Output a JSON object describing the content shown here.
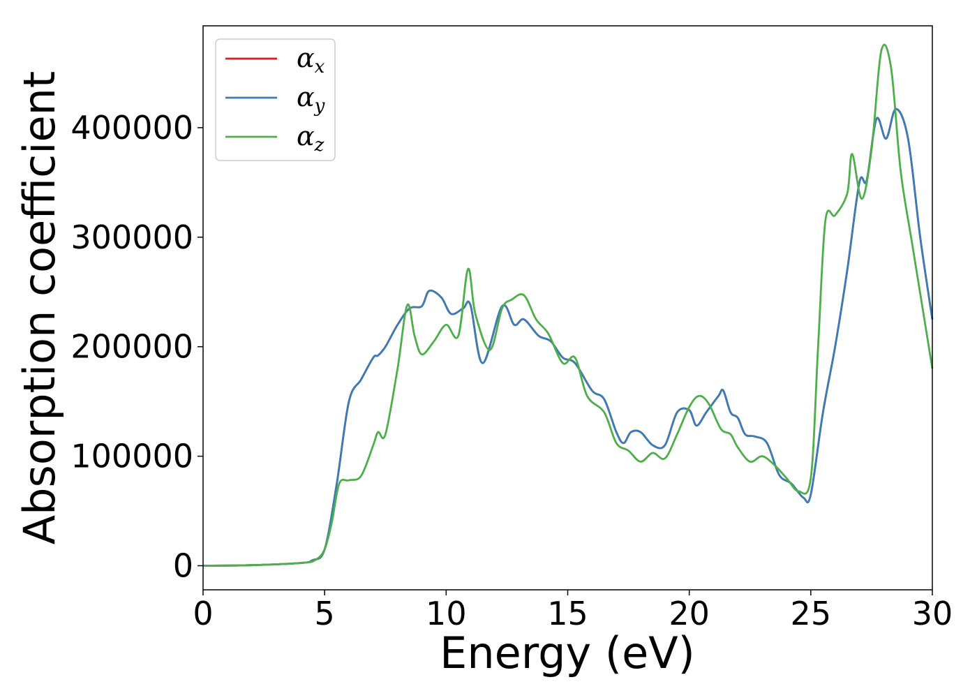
{
  "chart_data": {
    "type": "line",
    "title": "",
    "xlabel": "Energy (eV)",
    "ylabel": "Absorption coefficient",
    "xlim": [
      0,
      30
    ],
    "ylim": [
      -22000,
      493000
    ],
    "xticks": [
      0,
      5,
      10,
      15,
      20,
      25,
      30
    ],
    "xtick_labels": [
      "0",
      "5",
      "10",
      "15",
      "20",
      "25",
      "30"
    ],
    "yticks": [
      0,
      100000,
      200000,
      300000,
      400000
    ],
    "ytick_labels": [
      "0",
      "100000",
      "200000",
      "300000",
      "400000"
    ],
    "grid": false,
    "legend_position": "top-left",
    "series": [
      {
        "name": "αx",
        "label_base": "α",
        "label_sub": "x",
        "color": "#e41a1c",
        "x": [
          0,
          2,
          4,
          4.5,
          5,
          5.5,
          6,
          6.5,
          7,
          7.2,
          7.5,
          8,
          8.5,
          9,
          9.3,
          9.8,
          10.2,
          10.7,
          11,
          11.5,
          12.3,
          12.8,
          13.2,
          13.8,
          14.3,
          14.8,
          15.3,
          16,
          16.5,
          17,
          17.3,
          17.6,
          18,
          18.5,
          19,
          19.5,
          20,
          20.3,
          20.7,
          21.2,
          21.4,
          21.7,
          22,
          22.3,
          22.7,
          23.2,
          23.7,
          24.2,
          24.7,
          25,
          25.5,
          26,
          26.5,
          27,
          27.3,
          27.7,
          28.1,
          28.5,
          29,
          29.5,
          30
        ],
        "y": [
          0,
          500,
          2500,
          5000,
          15000,
          75000,
          150000,
          170000,
          190000,
          192000,
          200000,
          220000,
          235000,
          237000,
          251000,
          245000,
          230000,
          235000,
          238000,
          185000,
          237000,
          220000,
          225000,
          210000,
          205000,
          190000,
          185000,
          160000,
          152000,
          122000,
          112000,
          122000,
          122000,
          110000,
          110000,
          140000,
          142000,
          128000,
          140000,
          155000,
          160000,
          140000,
          135000,
          120000,
          118000,
          112000,
          83000,
          75000,
          62000,
          65000,
          140000,
          200000,
          270000,
          350000,
          352000,
          408000,
          390000,
          417000,
          390000,
          300000,
          225000
        ]
      },
      {
        "name": "αy",
        "label_base": "α",
        "label_sub": "y",
        "color": "#377eb8",
        "x": [
          0,
          2,
          4,
          4.5,
          5,
          5.5,
          6,
          6.5,
          7,
          7.2,
          7.5,
          8,
          8.5,
          9,
          9.3,
          9.8,
          10.2,
          10.7,
          11,
          11.5,
          12.3,
          12.8,
          13.2,
          13.8,
          14.3,
          14.8,
          15.3,
          16,
          16.5,
          17,
          17.3,
          17.6,
          18,
          18.5,
          19,
          19.5,
          20,
          20.3,
          20.7,
          21.2,
          21.4,
          21.7,
          22,
          22.3,
          22.7,
          23.2,
          23.7,
          24.2,
          24.7,
          25,
          25.5,
          26,
          26.5,
          27,
          27.3,
          27.7,
          28.1,
          28.5,
          29,
          29.5,
          30
        ],
        "y": [
          0,
          500,
          2500,
          5000,
          15000,
          75000,
          150000,
          170000,
          190000,
          192000,
          200000,
          220000,
          235000,
          237000,
          251000,
          245000,
          230000,
          235000,
          238000,
          185000,
          237000,
          220000,
          225000,
          210000,
          205000,
          190000,
          185000,
          160000,
          152000,
          122000,
          112000,
          122000,
          122000,
          110000,
          110000,
          140000,
          142000,
          128000,
          140000,
          155000,
          160000,
          140000,
          135000,
          120000,
          118000,
          112000,
          83000,
          75000,
          62000,
          65000,
          140000,
          200000,
          270000,
          350000,
          352000,
          408000,
          390000,
          417000,
          390000,
          300000,
          225000
        ]
      },
      {
        "name": "αz",
        "label_base": "α",
        "label_sub": "z",
        "color": "#4daf4a",
        "x": [
          0,
          2,
          4,
          4.6,
          5,
          5.3,
          5.6,
          6,
          6.5,
          7,
          7.2,
          7.5,
          8,
          8.4,
          8.7,
          9,
          9.5,
          10,
          10.5,
          10.9,
          11.2,
          11.8,
          12.3,
          12.7,
          13.2,
          13.7,
          14.2,
          14.8,
          15.3,
          15.8,
          16.5,
          17,
          17.5,
          18,
          18.5,
          19,
          19.5,
          20,
          20.4,
          20.8,
          21.3,
          21.7,
          22,
          22.5,
          23,
          23.5,
          24,
          24.5,
          25,
          25.3,
          25.6,
          26,
          26.5,
          26.7,
          27.1,
          27.5,
          27.9,
          28.3,
          28.7,
          29.2,
          30
        ],
        "y": [
          0,
          500,
          2500,
          5000,
          15000,
          40000,
          75000,
          78000,
          82000,
          110000,
          122000,
          120000,
          180000,
          238000,
          210000,
          193000,
          205000,
          220000,
          210000,
          271000,
          230000,
          197000,
          235000,
          243000,
          247000,
          225000,
          212000,
          185000,
          190000,
          155000,
          140000,
          112000,
          105000,
          95000,
          103000,
          98000,
          120000,
          145000,
          155000,
          148000,
          125000,
          120000,
          108000,
          95000,
          100000,
          92000,
          80000,
          68000,
          80000,
          200000,
          315000,
          320000,
          340000,
          376000,
          335000,
          380000,
          470000,
          455000,
          360000,
          290000,
          180000
        ]
      }
    ]
  }
}
